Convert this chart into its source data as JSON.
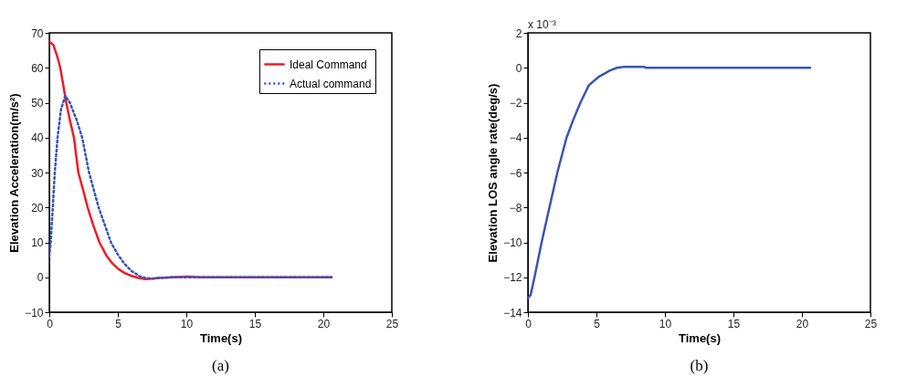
{
  "chart_data": [
    {
      "type": "line",
      "title": "(a)",
      "xlabel": "Time(s)",
      "ylabel": "Elevation Acceleration(m/s²)",
      "xlim": [
        0,
        25
      ],
      "xticks": [
        0,
        5,
        10,
        15,
        20,
        25
      ],
      "ylim": [
        -10,
        70
      ],
      "yticks": [
        -10,
        0,
        10,
        20,
        30,
        40,
        50,
        60,
        70
      ],
      "grid": false,
      "legend": "top right",
      "series": [
        {
          "name": "Ideal Command",
          "color": "#ee1c25",
          "line_style": "solid",
          "x": [
            0,
            0.3,
            0.6,
            0.8,
            1.24,
            1.5,
            1.8,
            2.12,
            2.5,
            2.8,
            3.2,
            3.66,
            4.2,
            4.6,
            5,
            5.5,
            6,
            6.5,
            7,
            7.5,
            8,
            9,
            10.1,
            11,
            20.6
          ],
          "values": [
            67.5,
            66.5,
            63,
            60,
            50,
            45,
            40,
            30,
            24.5,
            20,
            15,
            10,
            6,
            4,
            2.5,
            1.2,
            0.4,
            -0.2,
            -0.5,
            -0.4,
            -0.2,
            0,
            0.2,
            0,
            0
          ]
        },
        {
          "name": "Actual command",
          "color": "#3355bb",
          "line_style": "dotted",
          "x": [
            0,
            0.1,
            0.25,
            0.4,
            0.6,
            0.85,
            1.16,
            1.5,
            2,
            2.4,
            2.9,
            3.6,
            4.5,
            5,
            5.5,
            6,
            6.6,
            7,
            7.5,
            8,
            9,
            20.6
          ],
          "values": [
            6,
            10,
            20,
            30,
            40,
            48,
            52,
            50,
            45,
            40,
            30,
            20,
            10,
            6.5,
            3.8,
            1.8,
            0.3,
            -0.2,
            -0.4,
            -0.2,
            0,
            0
          ]
        }
      ]
    },
    {
      "type": "line",
      "title": "(b)",
      "xlabel": "Time(s)",
      "ylabel": "Elevation LOS angle rate(deg/s)",
      "xlim": [
        0,
        25
      ],
      "xticks": [
        0,
        5,
        10,
        15,
        20,
        25
      ],
      "ylim": [
        -14,
        2
      ],
      "yticks": [
        -14,
        -12,
        -10,
        -8,
        -6,
        -4,
        -2,
        0,
        2
      ],
      "grid": false,
      "annotations": [
        "x 10⁻³"
      ],
      "series": [
        {
          "color": "#3a56b0",
          "line_style": "solid",
          "x": [
            0,
            0.2,
            0.48,
            1,
            1.57,
            2.15,
            2.82,
            3.3,
            3.83,
            4.45,
            5.2,
            6,
            6.5,
            7,
            8.5,
            8.6,
            20.6
          ],
          "values": [
            -13.2,
            -13,
            -12,
            -10,
            -8,
            -6,
            -4,
            -3,
            -2,
            -1,
            -0.5,
            -0.15,
            0,
            0.05,
            0.05,
            0,
            0
          ]
        }
      ]
    }
  ]
}
